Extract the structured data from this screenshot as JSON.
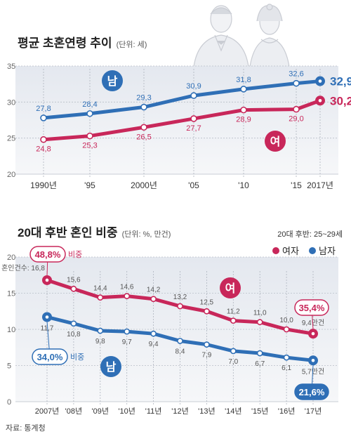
{
  "chart_data": [
    {
      "type": "line",
      "title": "평균 초혼연령 추이",
      "unit_note": "(단위: 세)",
      "categories": [
        "1990년",
        "'95",
        "2000년",
        "'05",
        "'10",
        "'15",
        "2017년"
      ],
      "ylim": [
        20,
        35
      ],
      "yticks": [
        20,
        25,
        30,
        35
      ],
      "grid": true,
      "series": [
        {
          "name": "남",
          "color": "#2f6fb6",
          "values": [
            27.8,
            28.4,
            29.3,
            30.9,
            31.8,
            32.6,
            32.9
          ],
          "labels": [
            "27,8",
            "28,4",
            "29,3",
            "30,9",
            "31,8",
            "32,6",
            "32,9"
          ],
          "last_unit": "세"
        },
        {
          "name": "여",
          "color": "#c8275a",
          "values": [
            24.8,
            25.3,
            26.5,
            27.7,
            28.9,
            29.0,
            30.2
          ],
          "labels": [
            "24,8",
            "25,3",
            "26,5",
            "27,7",
            "28,9",
            "29,0",
            "30,2"
          ],
          "last_unit": "세"
        }
      ]
    },
    {
      "type": "line",
      "title": "20대 후반 혼인 비중",
      "unit_note": "(단위: %, 만건)",
      "subnote": "20대 후반: 25~29세",
      "categories": [
        "2007년",
        "'08년",
        "'09년",
        "'10년",
        "'11년",
        "'12년",
        "'13년",
        "'14년",
        "'15년",
        "'16년",
        "'17년"
      ],
      "ylim": [
        0,
        20
      ],
      "yticks": [
        0,
        5,
        10,
        15,
        20
      ],
      "grid": true,
      "legend": [
        "여자",
        "남자"
      ],
      "legend_position": "top-right",
      "series": [
        {
          "name": "여",
          "legend": "여자",
          "color": "#c8275a",
          "values": [
            16.8,
            15.6,
            14.4,
            14.6,
            14.2,
            13.2,
            12.5,
            11.2,
            11.0,
            10.0,
            9.4
          ],
          "labels": [
            "16,8",
            "15,6",
            "14,4",
            "14,6",
            "14,2",
            "13,2",
            "12,5",
            "11,2",
            "11,0",
            "10,0",
            "9,4"
          ]
        },
        {
          "name": "남",
          "legend": "남자",
          "color": "#2f6fb6",
          "values": [
            11.7,
            10.8,
            9.8,
            9.7,
            9.4,
            8.4,
            7.9,
            7.0,
            6.7,
            6.1,
            5.7
          ],
          "labels": [
            "11,7",
            "10,8",
            "9,8",
            "9,7",
            "9,4",
            "8,4",
            "7,9",
            "7,0",
            "6,7",
            "6,1",
            "5,7"
          ]
        }
      ],
      "annotations": {
        "first_point_prefix": "혼인건수: ",
        "last_point_suffix": "만건",
        "female_share_2007": "48,8%",
        "female_share_2017": "35,4%",
        "male_share_2007": "34,0%",
        "male_share_2017": "21,6%",
        "share_word": "비중"
      }
    }
  ],
  "source": "자료: 통계청"
}
